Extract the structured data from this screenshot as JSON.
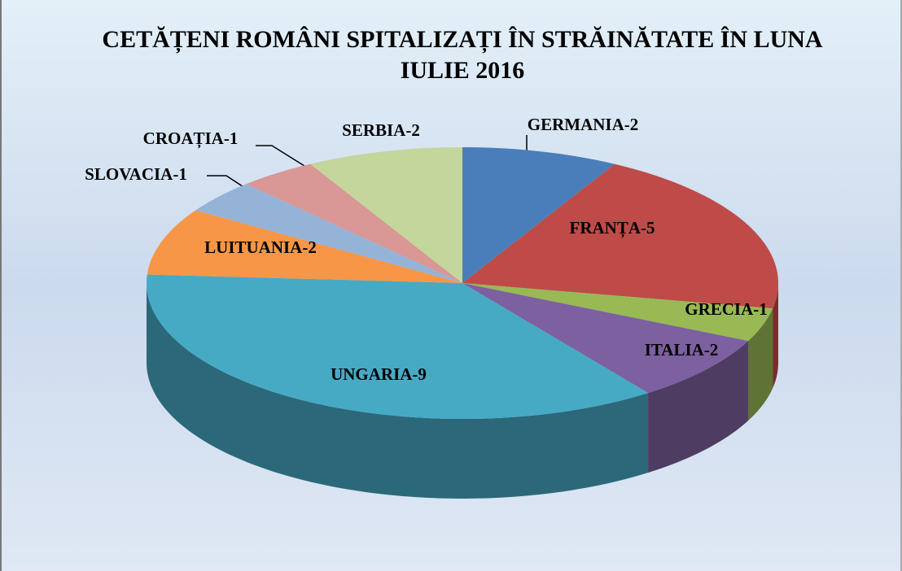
{
  "chart_data": {
    "type": "pie3d",
    "title": "CETĂȚENI ROMÂNI SPITALIZAȚI ÎN STRĂINĂTATE ÎN LUNA IULIE 2016",
    "values": [
      2,
      5,
      1,
      2,
      9,
      2,
      1,
      1,
      2
    ],
    "value_labels": [
      "GERMANIA-2",
      "FRANȚA-5",
      "GRECIA-1",
      "ITALIA-2",
      "UNGARIA-9",
      "LUITUANIA-2",
      "SLOVACIA-1",
      "CROAȚIA-1",
      "SERBIA-2"
    ],
    "colors": [
      "#4a7ebb",
      "#be4b48",
      "#98b954",
      "#7d60a0",
      "#46aac5",
      "#f79646",
      "#95b3d7",
      "#d99795",
      "#c3d69b"
    ]
  }
}
